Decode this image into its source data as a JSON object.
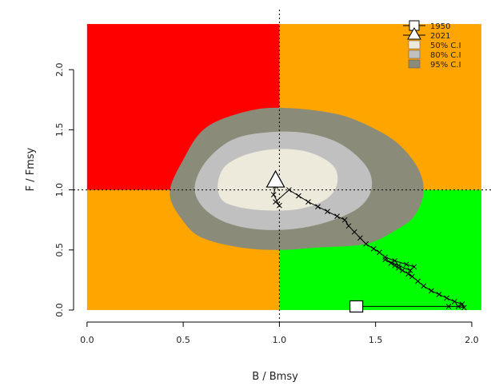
{
  "chart_data": {
    "type": "scatter",
    "title": "",
    "xlabel": "B / Bmsy",
    "ylabel": "F / Fmsy",
    "xlim": [
      -0.07,
      2.1
    ],
    "ylim": [
      -0.1,
      2.5
    ],
    "x_ticks": [
      "0.0",
      "0.5",
      "1.0",
      "1.5",
      "2.0"
    ],
    "x_tick_values": [
      0,
      0.5,
      1,
      1.5,
      2
    ],
    "y_ticks": [
      "0.0",
      "0.5",
      "1.0",
      "1.5",
      "2.0"
    ],
    "y_tick_values": [
      0,
      0.5,
      1,
      1.5,
      2
    ],
    "reference_lines": {
      "x": 1.0,
      "y": 1.0
    },
    "quadrant_extent": {
      "x": [
        0,
        2.05
      ],
      "y": [
        0,
        2.38
      ]
    },
    "quadrant_colors": {
      "top_left": "#ff0000",
      "top_right": "#ffa500",
      "bottom_left": "#ffa500",
      "bottom_right": "#00ff00"
    },
    "confidence_regions": [
      {
        "label": "95% C.I",
        "color": "#8b8b7a",
        "points": [
          [
            0.5,
            0.74
          ],
          [
            0.43,
            0.97
          ],
          [
            0.5,
            1.25
          ],
          [
            0.62,
            1.52
          ],
          [
            0.85,
            1.66
          ],
          [
            1.05,
            1.68
          ],
          [
            1.3,
            1.63
          ],
          [
            1.48,
            1.52
          ],
          [
            1.62,
            1.38
          ],
          [
            1.72,
            1.18
          ],
          [
            1.75,
            0.98
          ],
          [
            1.7,
            0.78
          ],
          [
            1.6,
            0.66
          ],
          [
            1.45,
            0.55
          ],
          [
            1.2,
            0.52
          ],
          [
            1.0,
            0.5
          ],
          [
            0.8,
            0.52
          ],
          [
            0.6,
            0.6
          ]
        ]
      },
      {
        "label": "80% C.I",
        "color": "#c0c0c0",
        "points": [
          [
            0.6,
            0.86
          ],
          [
            0.56,
            1.03
          ],
          [
            0.62,
            1.24
          ],
          [
            0.76,
            1.42
          ],
          [
            0.95,
            1.48
          ],
          [
            1.15,
            1.47
          ],
          [
            1.32,
            1.38
          ],
          [
            1.45,
            1.2
          ],
          [
            1.48,
            1.02
          ],
          [
            1.42,
            0.86
          ],
          [
            1.28,
            0.75
          ],
          [
            1.1,
            0.68
          ],
          [
            0.9,
            0.67
          ],
          [
            0.72,
            0.73
          ]
        ]
      },
      {
        "label": "50% C.I",
        "color": "#eeeadb",
        "points": [
          [
            0.7,
            0.92
          ],
          [
            0.68,
            1.05
          ],
          [
            0.72,
            1.2
          ],
          [
            0.84,
            1.3
          ],
          [
            1.0,
            1.34
          ],
          [
            1.16,
            1.31
          ],
          [
            1.28,
            1.2
          ],
          [
            1.3,
            1.05
          ],
          [
            1.24,
            0.92
          ],
          [
            1.1,
            0.84
          ],
          [
            0.92,
            0.83
          ],
          [
            0.78,
            0.86
          ]
        ]
      }
    ],
    "trajectory": {
      "color": "#000000",
      "points": [
        [
          1.4,
          0.03
        ],
        [
          1.88,
          0.03
        ],
        [
          1.93,
          0.03
        ],
        [
          1.96,
          0.02
        ],
        [
          1.95,
          0.05
        ],
        [
          1.91,
          0.07
        ],
        [
          1.87,
          0.1
        ],
        [
          1.83,
          0.13
        ],
        [
          1.79,
          0.16
        ],
        [
          1.75,
          0.2
        ],
        [
          1.72,
          0.24
        ],
        [
          1.69,
          0.28
        ],
        [
          1.67,
          0.3
        ],
        [
          1.64,
          0.33
        ],
        [
          1.62,
          0.35
        ],
        [
          1.6,
          0.37
        ],
        [
          1.58,
          0.39
        ],
        [
          1.55,
          0.42
        ],
        [
          1.62,
          0.37
        ],
        [
          1.68,
          0.33
        ],
        [
          1.7,
          0.36
        ],
        [
          1.66,
          0.38
        ],
        [
          1.6,
          0.41
        ],
        [
          1.55,
          0.44
        ],
        [
          1.52,
          0.48
        ],
        [
          1.49,
          0.51
        ],
        [
          1.45,
          0.55
        ],
        [
          1.42,
          0.6
        ],
        [
          1.39,
          0.65
        ],
        [
          1.36,
          0.7
        ],
        [
          1.34,
          0.75
        ],
        [
          1.3,
          0.78
        ],
        [
          1.25,
          0.82
        ],
        [
          1.2,
          0.86
        ],
        [
          1.15,
          0.9
        ],
        [
          1.1,
          0.95
        ],
        [
          1.05,
          1.0
        ],
        [
          0.98,
          0.9
        ],
        [
          1.0,
          0.87
        ],
        [
          0.97,
          0.96
        ],
        [
          0.98,
          1.03
        ]
      ]
    },
    "markers": [
      {
        "label": "1950",
        "x": 1.4,
        "y": 0.03,
        "shape": "square"
      },
      {
        "label": "2021",
        "x": 0.98,
        "y": 1.07,
        "shape": "triangle"
      }
    ],
    "legend": {
      "placement": "top-right",
      "entries": [
        {
          "label": "1950",
          "symbol": "square"
        },
        {
          "label": "2021",
          "symbol": "triangle"
        },
        {
          "label": "50% C.I",
          "color": "#eeeadb"
        },
        {
          "label": "80% C.I",
          "color": "#c0c0c0"
        },
        {
          "label": "95% C.I",
          "color": "#8b8b7a"
        }
      ]
    }
  }
}
